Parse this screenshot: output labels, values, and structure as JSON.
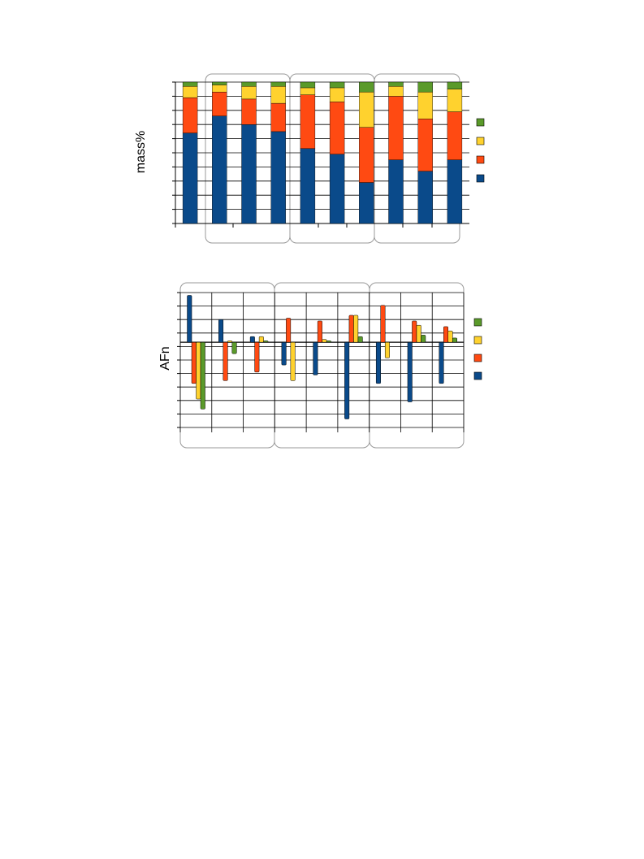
{
  "colors": {
    "blue": "#0a4a8a",
    "red": "#ff4a12",
    "yellow": "#ffd22e",
    "green": "#5a9a2a",
    "grid": "#000000",
    "group_outline": "#999999"
  },
  "chart_data": [
    {
      "type": "bar",
      "stacked": true,
      "ylabel": "mass%",
      "ylim": [
        0,
        100
      ],
      "grid": true,
      "legend": "right",
      "categories": [
        "",
        "",
        "",
        "",
        "",
        "",
        "",
        "",
        "",
        ""
      ],
      "groups": [
        [
          1,
          2,
          3
        ],
        [
          4,
          5,
          6
        ],
        [
          7,
          8,
          9
        ]
      ],
      "series": [
        {
          "color": "blue",
          "values": [
            64,
            76,
            70,
            65,
            53,
            49,
            29,
            45,
            37,
            45
          ]
        },
        {
          "color": "red",
          "values": [
            25,
            17,
            18,
            20,
            38,
            37,
            39,
            45,
            37,
            34
          ]
        },
        {
          "color": "yellow",
          "values": [
            8,
            5,
            9,
            12,
            5,
            10,
            25,
            7,
            19,
            16
          ]
        },
        {
          "color": "green",
          "values": [
            3,
            2,
            3,
            3,
            4,
            4,
            7,
            3,
            7,
            5
          ]
        }
      ]
    },
    {
      "type": "bar",
      "ylabel": "AFn",
      "ylim": [
        -0.6,
        0.35
      ],
      "grid": true,
      "legend": "right",
      "categories": [
        "",
        "",
        "",
        "",
        "",
        "",
        "",
        "",
        ""
      ],
      "groups": [
        [
          0,
          1,
          2
        ],
        [
          3,
          4,
          5
        ],
        [
          6,
          7,
          8
        ]
      ],
      "series": [
        {
          "color": "blue",
          "values": [
            0.33,
            0.16,
            0.04,
            -0.16,
            -0.23,
            -0.54,
            -0.29,
            -0.42,
            -0.29
          ]
        },
        {
          "color": "red",
          "values": [
            -0.29,
            -0.27,
            -0.21,
            0.17,
            0.15,
            0.19,
            0.26,
            0.15,
            0.11
          ]
        },
        {
          "color": "yellow",
          "values": [
            -0.4,
            0.01,
            0.04,
            -0.27,
            0.02,
            0.19,
            -0.11,
            0.12,
            0.08
          ]
        },
        {
          "color": "green",
          "values": [
            -0.47,
            -0.08,
            0.01,
            0.0,
            0.01,
            0.04,
            0.0,
            0.05,
            0.03
          ]
        }
      ]
    }
  ]
}
